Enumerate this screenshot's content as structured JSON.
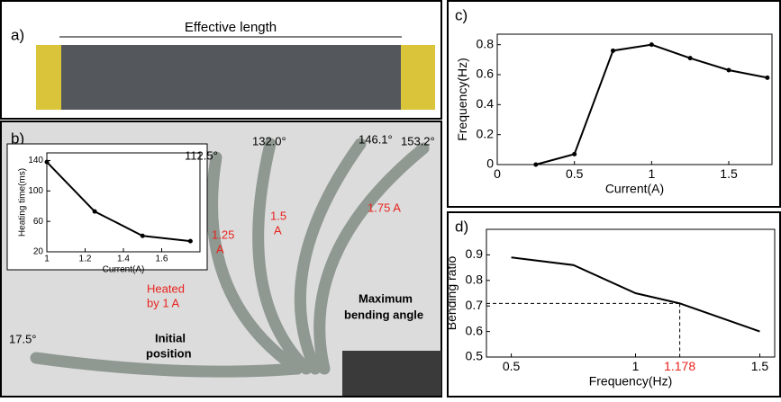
{
  "panels": {
    "a": "a)",
    "b": "b)",
    "c": "c)",
    "d": "d)"
  },
  "photo_a": {
    "caption": "Effective length"
  },
  "photo_b": {
    "angles": [
      "17.5°",
      "112.5°",
      "132.0°",
      "146.1°",
      "153.2°"
    ],
    "currents": [
      [
        "Heated",
        "by 1 A"
      ],
      [
        "1.25",
        "A"
      ],
      [
        "1.5",
        "A"
      ],
      [
        "1.75 A"
      ]
    ],
    "max_label": [
      "Maximum",
      "bending angle"
    ],
    "initial_label": [
      "Initial",
      "position"
    ]
  },
  "chart_data": [
    {
      "type": "line",
      "xlabel": "Current(A)",
      "ylabel": "Heating time(ms)",
      "x": [
        1,
        1.25,
        1.5,
        1.75
      ],
      "values": [
        138,
        73,
        41,
        34
      ],
      "color": "#000000",
      "markers": true,
      "xlim": [
        1,
        1.8
      ],
      "ylim": [
        20,
        150
      ],
      "xticks": [
        1,
        1.2,
        1.4,
        1.6
      ],
      "yticks": [
        20,
        60,
        100,
        140
      ]
    },
    {
      "type": "line",
      "xlabel": "Current(A)",
      "ylabel": "Frequency(Hz)",
      "x": [
        0.25,
        0.5,
        0.75,
        1,
        1.25,
        1.5,
        1.75
      ],
      "values": [
        0,
        0.07,
        0.76,
        0.8,
        0.71,
        0.63,
        0.58
      ],
      "color": "#000000",
      "markers": true,
      "xlim": [
        0,
        1.78
      ],
      "ylim": [
        0,
        0.87
      ],
      "xticks": [
        0,
        0.5,
        1,
        1.5
      ],
      "yticks": [
        0,
        0.2,
        0.4,
        0.6,
        0.8
      ]
    },
    {
      "type": "line",
      "xlabel": "Frequency(Hz)",
      "ylabel": "Bending ratio",
      "x": [
        0.5,
        0.75,
        1,
        1.178,
        1.5
      ],
      "values": [
        0.89,
        0.86,
        0.75,
        0.71,
        0.6
      ],
      "color": "#000000",
      "markers": false,
      "xlim": [
        0.4,
        1.56
      ],
      "ylim": [
        0.5,
        1.0
      ],
      "xticks": [
        0.5,
        1,
        1.5
      ],
      "yticks": [
        0.5,
        0.6,
        0.7,
        0.8,
        0.9
      ],
      "reference": {
        "x": 1.178,
        "y": 0.71,
        "color": "#e8231e"
      }
    }
  ]
}
